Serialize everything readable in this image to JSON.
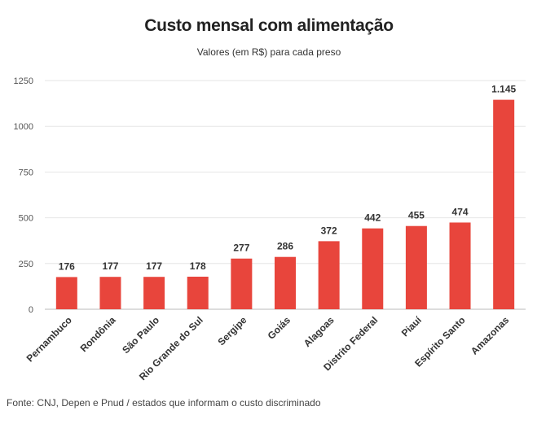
{
  "header": {
    "title": "Custo mensal com alimentação",
    "subtitle": "Valores (em R$) para cada preso"
  },
  "footer": {
    "source": "Fonte: CNJ, Depen e Pnud / estados que informam o custo discriminado"
  },
  "colors": {
    "bar": "#E8453C",
    "grid": "#E6E6E6",
    "axis": "#BBBBBB"
  },
  "chart_data": {
    "type": "bar",
    "title": "Custo mensal com alimentação",
    "subtitle": "Valores (em R$) para cada preso",
    "categories": [
      "Pernambuco",
      "Rondônia",
      "São Paulo",
      "Rio Grande do Sul",
      "Sergipe",
      "Goiás",
      "Alagoas",
      "Distrito Federal",
      "Piauí",
      "Espírito Santo",
      "Amazonas"
    ],
    "values": [
      176,
      177,
      177,
      178,
      277,
      286,
      372,
      442,
      455,
      474,
      1145
    ],
    "value_labels": [
      "176",
      "177",
      "177",
      "178",
      "277",
      "286",
      "372",
      "442",
      "455",
      "474",
      "1.145"
    ],
    "ylim": [
      0,
      1250
    ],
    "yticks": [
      0,
      250,
      500,
      750,
      1000,
      1250
    ],
    "grid": true,
    "legend": "none"
  }
}
